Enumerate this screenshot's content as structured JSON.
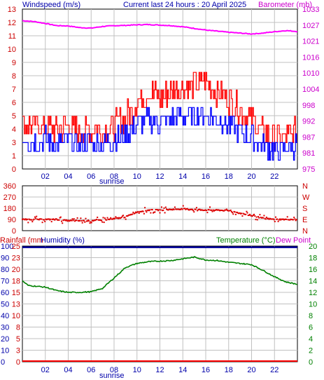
{
  "header": {
    "wind_title": "Windspeed (m/s)",
    "center_title": "Current last 24 hours : 20 April 2025",
    "baro_title": "Barometer (mb)"
  },
  "mid_header": {
    "rainfall": "Rainfall (mm",
    "humidity": "Humidity (%)",
    "temperature": "Temperature (°C)",
    "dewpoint": "Dew Point"
  },
  "colors": {
    "wind_gust": "#ff0000",
    "wind_avg": "#0000ff",
    "barometer": "#ff00ff",
    "direction": "#dd0000",
    "temperature": "#008000",
    "humidity": "#000099",
    "rain": "#ff0000",
    "label_blue": "#0000aa",
    "label_red": "#cc0000",
    "label_magenta": "#cc00cc",
    "label_green": "#008000"
  },
  "x_ticks": [
    "02",
    "04",
    "06",
    "08",
    "10",
    "12",
    "14",
    "16",
    "18",
    "20",
    "22"
  ],
  "sunrise_label": "sunrise",
  "wind_panel": {
    "left_ticks": [
      "0",
      "1",
      "3",
      "4",
      "5",
      "6",
      "7",
      "8",
      "9",
      "10",
      "11",
      "12",
      "13"
    ],
    "right_ticks": [
      "975",
      "981",
      "987",
      "992",
      "998",
      "1004",
      "1010",
      "1016",
      "1021",
      "1027",
      "1033"
    ]
  },
  "dir_panel": {
    "left_ticks": [
      "0",
      "90",
      "180",
      "270",
      "360"
    ],
    "right_ticks": [
      "N",
      "E",
      "S",
      "W",
      "N"
    ]
  },
  "temp_panel": {
    "left_hum_ticks": [
      "100",
      "90",
      "80",
      "70",
      "60",
      "50",
      "40",
      "30",
      "20",
      "10",
      "0"
    ],
    "left_rain_ticks": [
      "25",
      "23",
      "20",
      "18",
      "15",
      "13",
      "10",
      "8",
      "5",
      "3",
      "0"
    ],
    "right_ticks": [
      "20",
      "18",
      "16",
      "14",
      "12",
      "10",
      "8",
      "6",
      "4",
      "2",
      "0"
    ]
  },
  "chart_data": [
    {
      "type": "line",
      "title": "Current last 24 hours : 20 April 2025",
      "ylabel": "Windspeed (m/s)",
      "ylabel_right": "Barometer (mb)",
      "x_unit": "hour",
      "xlim": [
        0,
        24
      ],
      "ylim": [
        0,
        13
      ],
      "y2lim": [
        975,
        1033
      ],
      "series": [
        {
          "name": "Windspeed (m/s)",
          "hours": [
            0,
            1,
            2,
            3,
            4,
            5,
            6,
            7,
            8,
            9,
            10,
            11,
            12,
            13,
            14,
            15,
            16,
            17,
            18,
            19,
            20,
            21,
            22,
            23,
            24
          ],
          "values": [
            2.5,
            2.2,
            2.4,
            2.0,
            2.3,
            1.9,
            2.1,
            2.0,
            2.3,
            2.8,
            3.6,
            3.9,
            3.8,
            4.1,
            4.3,
            4.4,
            4.4,
            4.0,
            3.6,
            3.1,
            2.5,
            1.9,
            1.5,
            1.6,
            1.9
          ]
        },
        {
          "name": "Gust (m/s)",
          "hours": [
            0,
            1,
            2,
            3,
            4,
            5,
            6,
            7,
            8,
            9,
            10,
            11,
            12,
            13,
            14,
            15,
            16,
            17,
            18,
            19,
            20,
            21,
            22,
            23,
            24
          ],
          "values": [
            3.7,
            3.5,
            3.4,
            3.2,
            3.5,
            3.0,
            3.2,
            3.1,
            3.5,
            4.2,
            5.5,
            6.3,
            5.8,
            6.3,
            6.6,
            6.9,
            7.2,
            6.3,
            5.6,
            4.8,
            4.0,
            3.0,
            2.5,
            2.5,
            3.2
          ]
        },
        {
          "name": "Barometer (mb)",
          "hours": [
            0,
            1,
            2,
            3,
            4,
            5,
            6,
            7,
            8,
            9,
            10,
            11,
            12,
            13,
            14,
            15,
            16,
            17,
            18,
            19,
            20,
            21,
            22,
            23,
            24
          ],
          "values": [
            1028.8,
            1028.5,
            1027.8,
            1027.0,
            1026.9,
            1026.3,
            1026.1,
            1026.7,
            1027.0,
            1027.1,
            1027.3,
            1027.4,
            1027.2,
            1027.0,
            1026.6,
            1026.0,
            1025.4,
            1025.0,
            1024.6,
            1024.3,
            1024.0,
            1024.3,
            1024.8,
            1025.2,
            1024.9
          ]
        }
      ]
    },
    {
      "type": "scatter",
      "ylabel": "Wind direction (deg)",
      "xlim": [
        0,
        24
      ],
      "ylim": [
        0,
        360
      ],
      "series": [
        {
          "name": "Direction",
          "hours": [
            0,
            1,
            2,
            3,
            4,
            5,
            6,
            7,
            8,
            9,
            10,
            11,
            12,
            13,
            14,
            15,
            16,
            17,
            18,
            19,
            20,
            21,
            22,
            23,
            24
          ],
          "values": [
            90,
            90,
            90,
            90,
            80,
            80,
            80,
            85,
            95,
            110,
            150,
            165,
            165,
            170,
            175,
            170,
            165,
            165,
            160,
            140,
            120,
            100,
            90,
            90,
            90
          ]
        }
      ]
    },
    {
      "type": "line",
      "ylabel": "Humidity (%)",
      "ylabel_right": "Temperature (°C)",
      "xlim": [
        0,
        24
      ],
      "ylim": [
        0,
        100
      ],
      "y2lim": [
        0,
        20
      ],
      "series": [
        {
          "name": "Humidity (%)",
          "hours": [
            0,
            24
          ],
          "values": [
            99,
            99
          ]
        },
        {
          "name": "Temperature (°C)",
          "hours": [
            0,
            0.5,
            1,
            2,
            3,
            4,
            5,
            6,
            7,
            8,
            9,
            10,
            11,
            12,
            13,
            14,
            15,
            16,
            17,
            18,
            19,
            20,
            21,
            22,
            23,
            24
          ],
          "values": [
            14.0,
            13.2,
            13.1,
            12.9,
            12.3,
            12.0,
            12.0,
            12.1,
            12.7,
            14.5,
            16.3,
            17.0,
            17.3,
            17.4,
            17.5,
            17.8,
            18.1,
            17.6,
            17.5,
            17.2,
            17.0,
            16.8,
            15.8,
            14.7,
            13.8,
            13.4
          ]
        },
        {
          "name": "Rainfall (mm)",
          "hours": [
            0,
            24
          ],
          "values": [
            0,
            0
          ]
        }
      ]
    }
  ]
}
